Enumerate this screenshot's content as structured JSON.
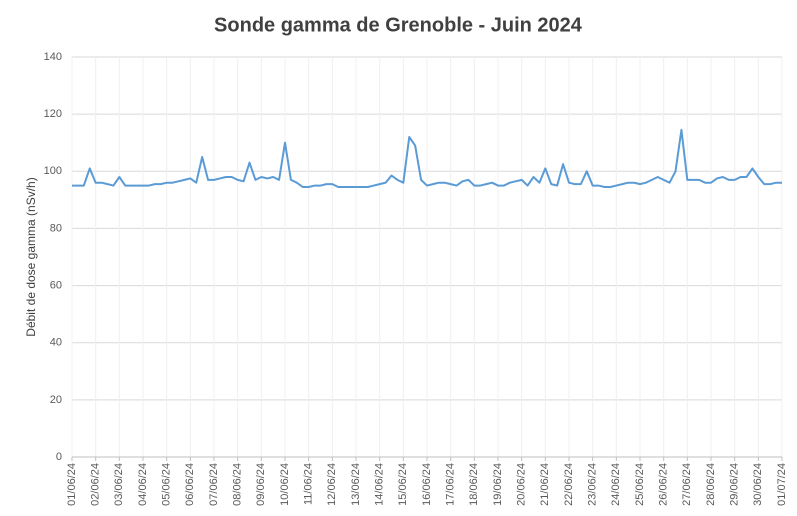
{
  "chart_data": {
    "type": "line",
    "title": "Sonde gamma de Grenoble - Juin 2024",
    "y_label": "Débit de dose gamma (nSv/h)",
    "x": [
      0,
      0.25,
      0.5,
      0.75,
      1,
      1.25,
      1.5,
      1.75,
      2,
      2.25,
      2.5,
      2.75,
      3,
      3.25,
      3.5,
      3.75,
      4,
      4.25,
      4.5,
      4.75,
      5,
      5.25,
      5.5,
      5.75,
      6,
      6.25,
      6.5,
      6.75,
      7,
      7.25,
      7.5,
      7.75,
      8,
      8.25,
      8.5,
      8.75,
      9,
      9.25,
      9.5,
      9.75,
      10,
      10.25,
      10.5,
      10.75,
      11,
      11.25,
      11.5,
      11.75,
      12,
      12.25,
      12.5,
      12.75,
      13,
      13.25,
      13.5,
      13.75,
      14,
      14.25,
      14.5,
      14.75,
      15,
      15.25,
      15.5,
      15.75,
      16,
      16.25,
      16.5,
      16.75,
      17,
      17.25,
      17.5,
      17.75,
      18,
      18.25,
      18.5,
      18.75,
      19,
      19.25,
      19.5,
      19.75,
      20,
      20.25,
      20.5,
      20.75,
      21,
      21.25,
      21.5,
      21.75,
      22,
      22.25,
      22.5,
      22.75,
      23,
      23.25,
      23.5,
      23.75,
      24,
      24.25,
      24.5,
      24.75,
      25,
      25.25,
      25.5,
      25.75,
      26,
      26.25,
      26.5,
      26.75,
      27,
      27.25,
      27.5,
      27.75,
      28,
      28.25,
      28.5,
      28.75,
      29,
      29.25,
      29.5,
      29.75,
      30
    ],
    "series": [
      {
        "name": "Débit de dose gamma",
        "color": "#5b9bd5",
        "values": [
          95,
          95,
          95,
          101,
          96,
          96,
          95.5,
          95,
          98,
          95,
          95,
          95,
          95,
          95,
          95.5,
          95.5,
          96,
          96,
          96.5,
          97,
          97.5,
          96,
          105,
          97,
          97,
          97.5,
          98,
          98,
          97,
          96.5,
          103,
          97,
          98,
          97.5,
          98,
          97,
          110,
          97,
          96,
          94.5,
          94.5,
          95,
          95,
          95.5,
          95.5,
          94.5,
          94.5,
          94.5,
          94.5,
          94.5,
          94.5,
          95,
          95.5,
          96,
          98.5,
          97,
          96,
          112,
          109,
          97,
          95,
          95.5,
          96,
          96,
          95.5,
          95,
          96.5,
          97,
          95,
          95,
          95.5,
          96,
          95,
          95,
          96,
          96.5,
          97,
          95,
          98,
          96,
          101,
          95.5,
          95,
          102.5,
          96,
          95.5,
          95.5,
          100,
          95,
          95,
          94.5,
          94.5,
          95,
          95.5,
          96,
          96,
          95.5,
          96,
          97,
          98,
          97,
          96,
          100,
          114.5,
          97,
          97,
          97,
          96,
          96,
          97.5,
          98,
          97,
          97,
          98,
          98,
          101,
          98,
          95.5,
          95.5,
          96,
          96
        ]
      }
    ],
    "xlim": [
      0,
      30
    ],
    "xticks": [
      {
        "value": 0,
        "label": "01/06/24"
      },
      {
        "value": 1,
        "label": "02/06/24"
      },
      {
        "value": 2,
        "label": "03/06/24"
      },
      {
        "value": 3,
        "label": "04/06/24"
      },
      {
        "value": 4,
        "label": "05/06/24"
      },
      {
        "value": 5,
        "label": "06/06/24"
      },
      {
        "value": 6,
        "label": "07/06/24"
      },
      {
        "value": 7,
        "label": "08/06/24"
      },
      {
        "value": 8,
        "label": "09/06/24"
      },
      {
        "value": 9,
        "label": "10/06/24"
      },
      {
        "value": 10,
        "label": "11/06/24"
      },
      {
        "value": 11,
        "label": "12/06/24"
      },
      {
        "value": 12,
        "label": "13/06/24"
      },
      {
        "value": 13,
        "label": "14/06/24"
      },
      {
        "value": 14,
        "label": "15/06/24"
      },
      {
        "value": 15,
        "label": "16/06/24"
      },
      {
        "value": 16,
        "label": "17/06/24"
      },
      {
        "value": 17,
        "label": "18/06/24"
      },
      {
        "value": 18,
        "label": "19/06/24"
      },
      {
        "value": 19,
        "label": "20/06/24"
      },
      {
        "value": 20,
        "label": "21/06/24"
      },
      {
        "value": 21,
        "label": "22/06/24"
      },
      {
        "value": 22,
        "label": "23/06/24"
      },
      {
        "value": 23,
        "label": "24/06/24"
      },
      {
        "value": 24,
        "label": "25/06/24"
      },
      {
        "value": 25,
        "label": "26/06/24"
      },
      {
        "value": 26,
        "label": "27/06/24"
      },
      {
        "value": 27,
        "label": "28/06/24"
      },
      {
        "value": 28,
        "label": "29/06/24"
      },
      {
        "value": 29,
        "label": "30/06/24"
      },
      {
        "value": 30,
        "label": "01/07/24"
      }
    ],
    "ylim": [
      0,
      140
    ],
    "yticks": [
      0,
      20,
      40,
      60,
      80,
      100,
      120,
      140
    ],
    "grid": true
  }
}
